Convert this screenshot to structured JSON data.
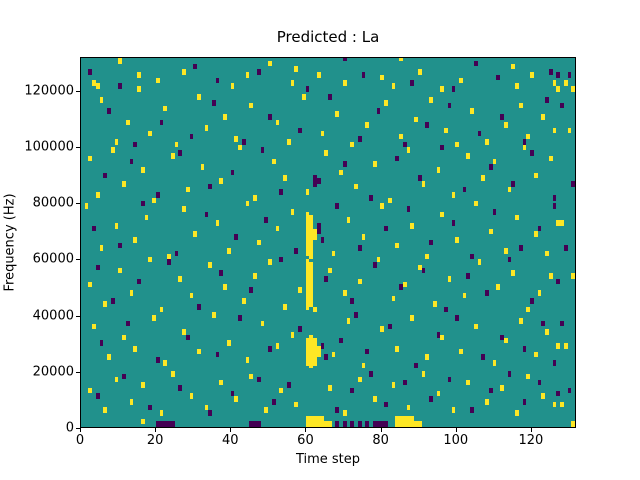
{
  "chart_data": {
    "type": "heatmap",
    "title": "Predicted : La",
    "xlabel": "Time step",
    "ylabel": "Frequency (Hz)",
    "xlim": [
      0,
      132
    ],
    "ylim": [
      0,
      132000
    ],
    "x_ticks": [
      0,
      20,
      40,
      60,
      80,
      100,
      120
    ],
    "y_ticks": [
      0,
      20000,
      40000,
      60000,
      80000,
      100000,
      120000
    ],
    "freq_bin_hz": 1000,
    "grid": false,
    "legend": "none",
    "colors": {
      "background": "#21918c",
      "high": "#fde725",
      "low": "#440154",
      "axes": "#000000",
      "figure": "#ffffff"
    },
    "cells_high": [
      [
        3,
        122
      ],
      [
        4,
        121
      ],
      [
        15,
        125
      ],
      [
        15,
        120
      ],
      [
        20,
        123
      ],
      [
        27,
        126
      ],
      [
        40,
        121
      ],
      [
        44,
        125
      ],
      [
        56,
        122
      ],
      [
        57,
        127
      ],
      [
        63,
        125
      ],
      [
        70,
        122
      ],
      [
        80,
        124
      ],
      [
        83,
        121
      ],
      [
        90,
        126
      ],
      [
        96,
        120
      ],
      [
        101,
        123
      ],
      [
        116,
        121
      ],
      [
        120,
        125
      ],
      [
        126,
        122
      ],
      [
        127,
        120
      ],
      [
        5,
        116
      ],
      [
        9,
        101
      ],
      [
        12,
        108
      ],
      [
        18,
        104
      ],
      [
        22,
        113
      ],
      [
        25,
        100
      ],
      [
        31,
        117
      ],
      [
        33,
        106
      ],
      [
        38,
        110
      ],
      [
        41,
        102
      ],
      [
        45,
        114
      ],
      [
        52,
        108
      ],
      [
        55,
        101
      ],
      [
        59,
        117
      ],
      [
        64,
        104
      ],
      [
        68,
        111
      ],
      [
        72,
        100
      ],
      [
        76,
        107
      ],
      [
        81,
        115
      ],
      [
        85,
        103
      ],
      [
        89,
        109
      ],
      [
        93,
        116
      ],
      [
        97,
        105
      ],
      [
        100,
        100
      ],
      [
        104,
        112
      ],
      [
        108,
        101
      ],
      [
        113,
        107
      ],
      [
        117,
        114
      ],
      [
        119,
        103
      ],
      [
        123,
        110
      ],
      [
        126,
        105
      ],
      [
        2,
        95
      ],
      [
        4,
        82
      ],
      [
        8,
        98
      ],
      [
        11,
        86
      ],
      [
        16,
        91
      ],
      [
        19,
        80
      ],
      [
        24,
        96
      ],
      [
        28,
        84
      ],
      [
        32,
        92
      ],
      [
        37,
        87
      ],
      [
        42,
        99
      ],
      [
        46,
        81
      ],
      [
        51,
        94
      ],
      [
        54,
        88
      ],
      [
        60,
        83
      ],
      [
        65,
        97
      ],
      [
        69,
        90
      ],
      [
        73,
        85
      ],
      [
        78,
        93
      ],
      [
        82,
        80
      ],
      [
        87,
        98
      ],
      [
        91,
        86
      ],
      [
        95,
        91
      ],
      [
        99,
        82
      ],
      [
        103,
        96
      ],
      [
        107,
        88
      ],
      [
        110,
        94
      ],
      [
        114,
        84
      ],
      [
        118,
        99
      ],
      [
        121,
        89
      ],
      [
        125,
        95
      ],
      [
        60,
        75
      ],
      [
        60,
        73
      ],
      [
        60,
        71
      ],
      [
        60,
        69
      ],
      [
        60,
        67
      ],
      [
        60,
        65
      ],
      [
        60,
        63
      ],
      [
        60,
        61
      ],
      [
        61,
        74
      ],
      [
        61,
        72
      ],
      [
        61,
        70
      ],
      [
        61,
        68
      ],
      [
        61,
        66
      ],
      [
        61,
        64
      ],
      [
        61,
        62
      ],
      [
        61,
        60
      ],
      [
        62,
        69
      ],
      [
        62,
        67
      ],
      [
        1,
        78
      ],
      [
        5,
        63
      ],
      [
        9,
        71
      ],
      [
        14,
        66
      ],
      [
        17,
        74
      ],
      [
        23,
        60
      ],
      [
        27,
        77
      ],
      [
        30,
        68
      ],
      [
        36,
        72
      ],
      [
        39,
        62
      ],
      [
        44,
        79
      ],
      [
        47,
        65
      ],
      [
        52,
        70
      ],
      [
        56,
        76
      ],
      [
        67,
        61
      ],
      [
        71,
        73
      ],
      [
        75,
        67
      ],
      [
        80,
        78
      ],
      [
        84,
        64
      ],
      [
        88,
        71
      ],
      [
        92,
        60
      ],
      [
        96,
        75
      ],
      [
        100,
        66
      ],
      [
        105,
        79
      ],
      [
        109,
        69
      ],
      [
        113,
        62
      ],
      [
        116,
        74
      ],
      [
        121,
        68
      ],
      [
        124,
        61
      ],
      [
        127,
        72
      ],
      [
        60,
        58
      ],
      [
        60,
        56
      ],
      [
        60,
        54
      ],
      [
        60,
        52
      ],
      [
        60,
        50
      ],
      [
        60,
        48
      ],
      [
        60,
        46
      ],
      [
        60,
        44
      ],
      [
        60,
        42
      ],
      [
        61,
        57
      ],
      [
        61,
        55
      ],
      [
        61,
        53
      ],
      [
        61,
        51
      ],
      [
        61,
        49
      ],
      [
        61,
        47
      ],
      [
        61,
        45
      ],
      [
        61,
        43
      ],
      [
        62,
        41
      ],
      [
        2,
        50
      ],
      [
        6,
        43
      ],
      [
        10,
        55
      ],
      [
        13,
        47
      ],
      [
        18,
        59
      ],
      [
        21,
        41
      ],
      [
        26,
        52
      ],
      [
        29,
        46
      ],
      [
        34,
        57
      ],
      [
        38,
        49
      ],
      [
        43,
        44
      ],
      [
        46,
        53
      ],
      [
        50,
        58
      ],
      [
        54,
        42
      ],
      [
        58,
        48
      ],
      [
        66,
        55
      ],
      [
        70,
        47
      ],
      [
        74,
        51
      ],
      [
        79,
        59
      ],
      [
        83,
        45
      ],
      [
        86,
        50
      ],
      [
        90,
        56
      ],
      [
        94,
        43
      ],
      [
        98,
        52
      ],
      [
        102,
        46
      ],
      [
        106,
        58
      ],
      [
        111,
        49
      ],
      [
        115,
        54
      ],
      [
        119,
        41
      ],
      [
        122,
        47
      ],
      [
        125,
        53
      ],
      [
        60,
        30
      ],
      [
        60,
        28
      ],
      [
        60,
        26
      ],
      [
        60,
        24
      ],
      [
        60,
        22
      ],
      [
        61,
        31
      ],
      [
        61,
        29
      ],
      [
        61,
        27
      ],
      [
        61,
        25
      ],
      [
        61,
        23
      ],
      [
        61,
        21
      ],
      [
        62,
        30
      ],
      [
        62,
        28
      ],
      [
        62,
        26
      ],
      [
        62,
        24
      ],
      [
        62,
        22
      ],
      [
        63,
        27
      ],
      [
        63,
        25
      ],
      [
        3,
        35
      ],
      [
        7,
        24
      ],
      [
        11,
        31
      ],
      [
        14,
        27
      ],
      [
        19,
        38
      ],
      [
        22,
        22
      ],
      [
        27,
        33
      ],
      [
        31,
        26
      ],
      [
        35,
        39
      ],
      [
        39,
        29
      ],
      [
        44,
        23
      ],
      [
        48,
        36
      ],
      [
        52,
        28
      ],
      [
        56,
        32
      ],
      [
        67,
        25
      ],
      [
        71,
        37
      ],
      [
        75,
        21
      ],
      [
        80,
        34
      ],
      [
        84,
        27
      ],
      [
        88,
        38
      ],
      [
        92,
        24
      ],
      [
        96,
        31
      ],
      [
        101,
        26
      ],
      [
        105,
        35
      ],
      [
        110,
        22
      ],
      [
        113,
        30
      ],
      [
        117,
        37
      ],
      [
        121,
        25
      ],
      [
        124,
        33
      ],
      [
        127,
        28
      ],
      [
        2,
        12
      ],
      [
        6,
        5
      ],
      [
        9,
        16
      ],
      [
        13,
        8
      ],
      [
        16,
        14
      ],
      [
        21,
        4
      ],
      [
        24,
        18
      ],
      [
        29,
        10
      ],
      [
        33,
        6
      ],
      [
        37,
        15
      ],
      [
        41,
        9
      ],
      [
        45,
        17
      ],
      [
        49,
        5
      ],
      [
        53,
        12
      ],
      [
        57,
        7
      ],
      [
        66,
        13
      ],
      [
        70,
        4
      ],
      [
        74,
        16
      ],
      [
        78,
        9
      ],
      [
        83,
        14
      ],
      [
        87,
        6
      ],
      [
        91,
        18
      ],
      [
        95,
        11
      ],
      [
        99,
        5
      ],
      [
        103,
        15
      ],
      [
        108,
        8
      ],
      [
        112,
        13
      ],
      [
        116,
        4
      ],
      [
        119,
        17
      ],
      [
        123,
        10
      ],
      [
        126,
        7
      ],
      [
        16,
        1
      ],
      [
        60,
        2
      ],
      [
        61,
        2
      ],
      [
        62,
        2
      ],
      [
        63,
        2
      ],
      [
        64,
        2
      ],
      [
        60,
        0
      ],
      [
        61,
        0
      ],
      [
        62,
        0
      ],
      [
        63,
        0
      ],
      [
        64,
        0
      ],
      [
        65,
        0
      ],
      [
        66,
        0
      ],
      [
        84,
        0
      ],
      [
        85,
        0
      ],
      [
        86,
        0
      ],
      [
        87,
        0
      ],
      [
        88,
        0
      ],
      [
        89,
        0
      ],
      [
        90,
        0
      ],
      [
        84,
        2
      ],
      [
        85,
        2
      ],
      [
        86,
        2
      ],
      [
        87,
        2
      ],
      [
        88,
        2
      ],
      [
        129,
        122
      ],
      [
        131,
        120
      ],
      [
        130,
        105
      ],
      [
        128,
        72
      ],
      [
        131,
        53
      ],
      [
        129,
        28
      ],
      [
        128,
        7
      ],
      [
        131,
        0
      ],
      [
        10,
        130
      ],
      [
        50,
        129
      ],
      [
        85,
        131
      ],
      [
        115,
        128
      ]
    ],
    "cells_low": [
      [
        2,
        126
      ],
      [
        10,
        121
      ],
      [
        36,
        123
      ],
      [
        47,
        126
      ],
      [
        60,
        120
      ],
      [
        75,
        125
      ],
      [
        88,
        122
      ],
      [
        99,
        120
      ],
      [
        111,
        124
      ],
      [
        125,
        126
      ],
      [
        127,
        125
      ],
      [
        7,
        112
      ],
      [
        14,
        100
      ],
      [
        21,
        108
      ],
      [
        29,
        103
      ],
      [
        35,
        115
      ],
      [
        43,
        101
      ],
      [
        50,
        110
      ],
      [
        58,
        105
      ],
      [
        66,
        117
      ],
      [
        74,
        102
      ],
      [
        79,
        112
      ],
      [
        86,
        100
      ],
      [
        92,
        107
      ],
      [
        98,
        114
      ],
      [
        106,
        104
      ],
      [
        112,
        110
      ],
      [
        118,
        101
      ],
      [
        124,
        116
      ],
      [
        6,
        89
      ],
      [
        13,
        94
      ],
      [
        20,
        82
      ],
      [
        26,
        97
      ],
      [
        34,
        85
      ],
      [
        40,
        90
      ],
      [
        48,
        98
      ],
      [
        53,
        83
      ],
      [
        62,
        86
      ],
      [
        62,
        88
      ],
      [
        63,
        87
      ],
      [
        70,
        93
      ],
      [
        77,
        81
      ],
      [
        84,
        95
      ],
      [
        90,
        88
      ],
      [
        96,
        99
      ],
      [
        102,
        84
      ],
      [
        109,
        92
      ],
      [
        115,
        86
      ],
      [
        120,
        97
      ],
      [
        126,
        81
      ],
      [
        3,
        70
      ],
      [
        10,
        64
      ],
      [
        16,
        79
      ],
      [
        25,
        61
      ],
      [
        33,
        75
      ],
      [
        41,
        67
      ],
      [
        49,
        73
      ],
      [
        57,
        62
      ],
      [
        63,
        71
      ],
      [
        63,
        69
      ],
      [
        64,
        66
      ],
      [
        68,
        78
      ],
      [
        74,
        63
      ],
      [
        81,
        70
      ],
      [
        87,
        77
      ],
      [
        93,
        65
      ],
      [
        99,
        72
      ],
      [
        104,
        60
      ],
      [
        110,
        76
      ],
      [
        117,
        63
      ],
      [
        122,
        70
      ],
      [
        126,
        78
      ],
      [
        4,
        56
      ],
      [
        8,
        44
      ],
      [
        15,
        51
      ],
      [
        23,
        58
      ],
      [
        31,
        42
      ],
      [
        37,
        54
      ],
      [
        45,
        48
      ],
      [
        53,
        59
      ],
      [
        65,
        52
      ],
      [
        72,
        44
      ],
      [
        78,
        57
      ],
      [
        85,
        49
      ],
      [
        91,
        55
      ],
      [
        97,
        41
      ],
      [
        103,
        53
      ],
      [
        108,
        47
      ],
      [
        114,
        59
      ],
      [
        120,
        44
      ],
      [
        127,
        51
      ],
      [
        5,
        29
      ],
      [
        12,
        36
      ],
      [
        20,
        23
      ],
      [
        28,
        31
      ],
      [
        36,
        25
      ],
      [
        42,
        38
      ],
      [
        50,
        27
      ],
      [
        58,
        34
      ],
      [
        64,
        28
      ],
      [
        65,
        24
      ],
      [
        69,
        30
      ],
      [
        73,
        39
      ],
      [
        76,
        26
      ],
      [
        82,
        35
      ],
      [
        89,
        21
      ],
      [
        95,
        32
      ],
      [
        100,
        38
      ],
      [
        107,
        24
      ],
      [
        112,
        31
      ],
      [
        118,
        27
      ],
      [
        123,
        36
      ],
      [
        126,
        22
      ],
      [
        4,
        10
      ],
      [
        11,
        17
      ],
      [
        18,
        6
      ],
      [
        26,
        13
      ],
      [
        34,
        4
      ],
      [
        40,
        11
      ],
      [
        47,
        16
      ],
      [
        51,
        8
      ],
      [
        55,
        14
      ],
      [
        68,
        5
      ],
      [
        72,
        12
      ],
      [
        77,
        18
      ],
      [
        81,
        7
      ],
      [
        86,
        15
      ],
      [
        93,
        9
      ],
      [
        98,
        16
      ],
      [
        104,
        5
      ],
      [
        109,
        12
      ],
      [
        114,
        18
      ],
      [
        118,
        8
      ],
      [
        122,
        15
      ],
      [
        127,
        11
      ],
      [
        20,
        0
      ],
      [
        21,
        0
      ],
      [
        22,
        0
      ],
      [
        23,
        0
      ],
      [
        24,
        0
      ],
      [
        45,
        0
      ],
      [
        46,
        0
      ],
      [
        47,
        0
      ],
      [
        68,
        0
      ],
      [
        70,
        0
      ],
      [
        72,
        0
      ],
      [
        74,
        0
      ],
      [
        76,
        0
      ],
      [
        78,
        0
      ],
      [
        79,
        0
      ],
      [
        80,
        0
      ],
      [
        81,
        0
      ],
      [
        130,
        125
      ],
      [
        128,
        114
      ],
      [
        131,
        86
      ],
      [
        129,
        63
      ],
      [
        128,
        36
      ],
      [
        130,
        12
      ],
      [
        30,
        128
      ],
      [
        70,
        131
      ],
      [
        105,
        129
      ]
    ]
  }
}
